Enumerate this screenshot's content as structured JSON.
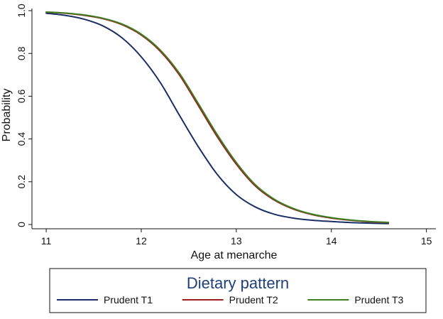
{
  "chart_data": {
    "type": "line",
    "title": "",
    "xlabel": "Age at menarche",
    "ylabel": "Probability",
    "xlim": [
      10.85,
      15.1
    ],
    "ylim": [
      -0.02,
      1.01
    ],
    "xticks": [
      11,
      12,
      13,
      14,
      15
    ],
    "xtick_labels": [
      "11",
      "12",
      "13",
      "14",
      "15"
    ],
    "yticks": [
      0,
      0.2,
      0.4,
      0.6,
      0.8,
      1.0
    ],
    "ytick_labels": [
      "0",
      "0.2",
      "0.4",
      "0.6",
      "0.8",
      "1.0"
    ],
    "grid": false,
    "legend": {
      "title": "Dietary pattern",
      "placement": "bottom"
    },
    "x": [
      11.0,
      11.2,
      11.4,
      11.6,
      11.8,
      12.0,
      12.2,
      12.4,
      12.6,
      12.8,
      13.0,
      13.2,
      13.4,
      13.6,
      13.8,
      14.0,
      14.2,
      14.4,
      14.6
    ],
    "series": [
      {
        "name": "Prudent T1",
        "color": "#1a2f66",
        "values": [
          0.988,
          0.978,
          0.96,
          0.928,
          0.872,
          0.784,
          0.664,
          0.512,
          0.364,
          0.234,
          0.14,
          0.082,
          0.048,
          0.03,
          0.02,
          0.014,
          0.009,
          0.006,
          0.004
        ]
      },
      {
        "name": "Prudent T2",
        "color": "#9c1e1e",
        "values": [
          0.993,
          0.988,
          0.978,
          0.962,
          0.934,
          0.886,
          0.81,
          0.7,
          0.556,
          0.41,
          0.282,
          0.18,
          0.114,
          0.072,
          0.046,
          0.03,
          0.02,
          0.013,
          0.009
        ]
      },
      {
        "name": "Prudent T3",
        "color": "#3f7d20",
        "values": [
          0.994,
          0.989,
          0.98,
          0.964,
          0.937,
          0.89,
          0.816,
          0.708,
          0.566,
          0.42,
          0.29,
          0.186,
          0.118,
          0.075,
          0.048,
          0.032,
          0.021,
          0.014,
          0.01
        ]
      }
    ]
  }
}
